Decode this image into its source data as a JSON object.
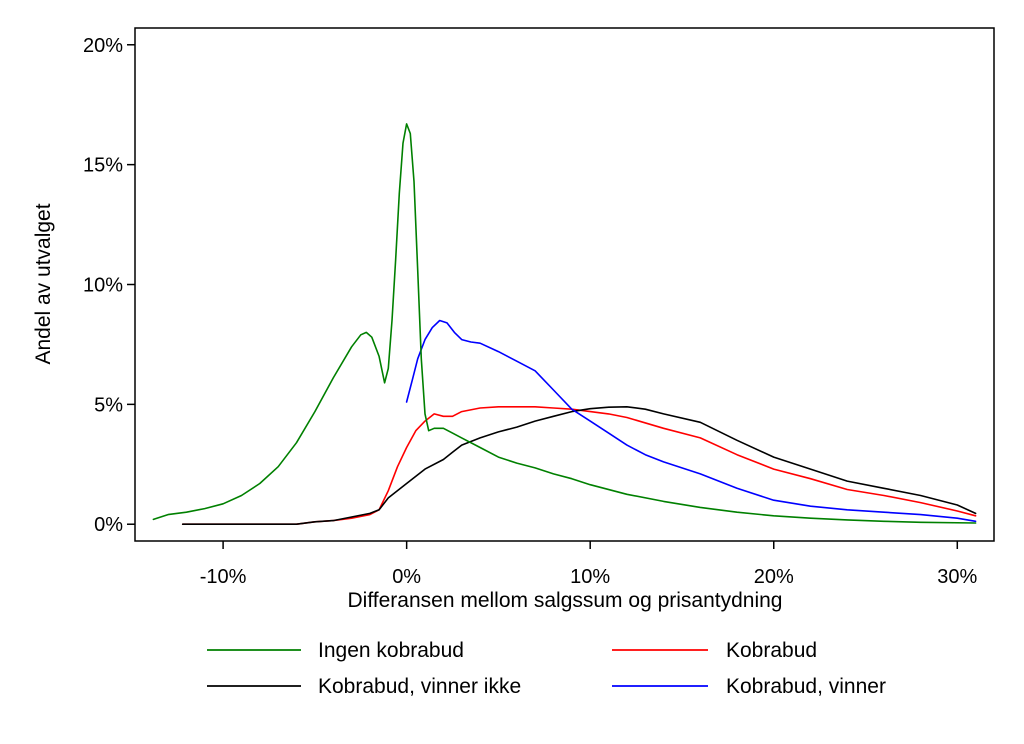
{
  "chart_data": {
    "type": "line",
    "title": "",
    "xlabel": "Differansen mellom salgssum og prisantydning",
    "ylabel": "Andel av utvalget",
    "xlim": [
      -14.8,
      32.0
    ],
    "ylim": [
      -0.7,
      20.7
    ],
    "x_ticks": [
      -10,
      0,
      10,
      20,
      30
    ],
    "x_tick_labels": [
      "-10%",
      "0%",
      "10%",
      "20%",
      "30%"
    ],
    "y_ticks": [
      0,
      5,
      10,
      15,
      20
    ],
    "y_tick_labels": [
      "0%",
      "5%",
      "10%",
      "15%",
      "20%"
    ],
    "grid": false,
    "legend_position": "bottom",
    "series": [
      {
        "name": "Ingen kobrabud",
        "color": "#008000",
        "x": [
          -13.8,
          -13,
          -12,
          -11,
          -10,
          -9,
          -8,
          -7,
          -6,
          -5,
          -4,
          -3,
          -2.5,
          -2.2,
          -1.9,
          -1.5,
          -1.2,
          -1.0,
          -0.8,
          -0.6,
          -0.4,
          -0.2,
          0,
          0.2,
          0.4,
          0.6,
          0.8,
          1.0,
          1.2,
          1.5,
          2,
          2.5,
          3,
          4,
          5,
          6,
          7,
          8,
          9,
          10,
          12,
          14,
          16,
          18,
          20,
          22,
          24,
          26,
          28,
          31
        ],
        "y": [
          0.2,
          0.4,
          0.5,
          0.65,
          0.85,
          1.2,
          1.7,
          2.4,
          3.4,
          4.7,
          6.1,
          7.4,
          7.9,
          8.0,
          7.8,
          7.0,
          5.9,
          6.5,
          8.5,
          11.0,
          13.8,
          15.9,
          16.7,
          16.3,
          14.3,
          10.6,
          6.9,
          4.6,
          3.9,
          4.0,
          4.0,
          3.8,
          3.6,
          3.2,
          2.8,
          2.55,
          2.35,
          2.1,
          1.9,
          1.65,
          1.25,
          0.95,
          0.7,
          0.5,
          0.35,
          0.25,
          0.18,
          0.12,
          0.08,
          0.05
        ]
      },
      {
        "name": "Kobrabud",
        "color": "#ff0000",
        "x": [
          -12.2,
          -11,
          -10,
          -9,
          -8,
          -7,
          -6,
          -5,
          -4,
          -3,
          -2,
          -1.5,
          -1,
          -0.5,
          0,
          0.5,
          1,
          1.5,
          2,
          2.5,
          3,
          4,
          5,
          6,
          7,
          8,
          9,
          10,
          11,
          12,
          14,
          16,
          18,
          20,
          22,
          24,
          26,
          28,
          30,
          31
        ],
        "y": [
          0,
          0,
          0,
          0,
          0,
          0,
          0,
          0.1,
          0.15,
          0.25,
          0.4,
          0.6,
          1.4,
          2.4,
          3.2,
          3.9,
          4.3,
          4.6,
          4.5,
          4.5,
          4.7,
          4.85,
          4.9,
          4.9,
          4.9,
          4.85,
          4.8,
          4.7,
          4.6,
          4.45,
          4.0,
          3.6,
          2.9,
          2.3,
          1.9,
          1.45,
          1.2,
          0.9,
          0.55,
          0.35
        ]
      },
      {
        "name": "Kobrabud, vinner ikke",
        "color": "#000000",
        "x": [
          -12.2,
          -11,
          -10,
          -9,
          -8,
          -7,
          -6,
          -5,
          -4,
          -3,
          -2,
          -1.5,
          -1,
          0,
          1,
          2,
          2.5,
          3,
          4,
          5,
          6,
          7,
          8,
          9,
          10,
          11,
          12,
          13,
          14,
          16,
          18,
          20,
          22,
          24,
          26,
          28,
          30,
          31
        ],
        "y": [
          0,
          0,
          0,
          0,
          0,
          0,
          0,
          0.1,
          0.15,
          0.3,
          0.45,
          0.6,
          1.1,
          1.7,
          2.3,
          2.7,
          3.0,
          3.3,
          3.6,
          3.85,
          4.05,
          4.3,
          4.5,
          4.7,
          4.82,
          4.88,
          4.9,
          4.8,
          4.6,
          4.25,
          3.5,
          2.8,
          2.3,
          1.8,
          1.5,
          1.2,
          0.8,
          0.45
        ]
      },
      {
        "name": "Kobrabud, vinner",
        "color": "#0000ff",
        "x": [
          0,
          0.3,
          0.6,
          1.0,
          1.4,
          1.8,
          2.2,
          2.6,
          3,
          3.5,
          4,
          5,
          6,
          7,
          8,
          9,
          10,
          11,
          12,
          13,
          14,
          16,
          18,
          20,
          22,
          24,
          26,
          28,
          30,
          31
        ],
        "y": [
          5.1,
          6.0,
          6.9,
          7.7,
          8.2,
          8.5,
          8.4,
          8.0,
          7.7,
          7.6,
          7.55,
          7.2,
          6.8,
          6.4,
          5.6,
          4.8,
          4.3,
          3.8,
          3.3,
          2.9,
          2.6,
          2.1,
          1.5,
          1.0,
          0.75,
          0.6,
          0.5,
          0.4,
          0.25,
          0.12
        ]
      }
    ]
  }
}
